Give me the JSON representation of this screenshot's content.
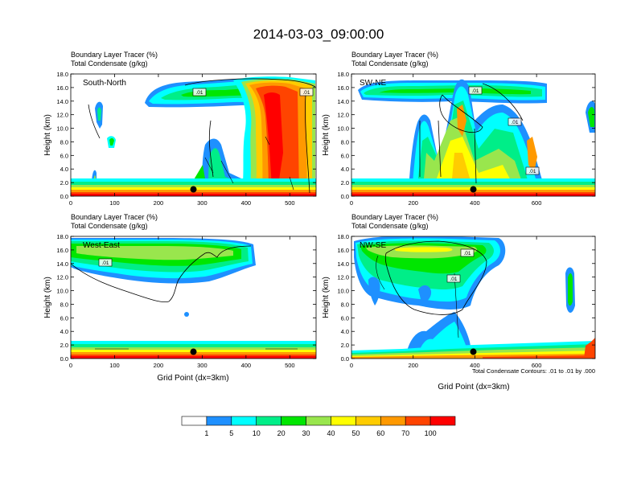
{
  "title": "2014-03-03_09:00:00",
  "chart_data": [
    {
      "type": "heatmap",
      "label": "South-North",
      "subtitle_line1": "Boundary Layer Tracer   (%)",
      "subtitle_line2": "Total Condensate   (g/kg)",
      "ylabel": "Height (km)",
      "xlabel": "",
      "xlim": [
        0,
        560
      ],
      "ylim": [
        0,
        18
      ],
      "xticks": [
        0,
        100,
        200,
        300,
        400,
        500
      ],
      "yticks": [
        "0.0",
        "2.0",
        "4.0",
        "6.0",
        "8.0",
        "10.0",
        "12.0",
        "14.0",
        "16.0",
        "18.0"
      ],
      "contour_labels": [
        ".01",
        ".01"
      ],
      "marker": {
        "x": 280,
        "y": 1.0
      }
    },
    {
      "type": "heatmap",
      "label": "SW-NE",
      "subtitle_line1": "Boundary Layer Tracer   (%)",
      "subtitle_line2": "Total Condensate   (g/kg)",
      "ylabel": "Height (km)",
      "xlabel": "",
      "xlim": [
        0,
        790
      ],
      "ylim": [
        0,
        18
      ],
      "xticks": [
        0,
        200,
        400,
        600
      ],
      "yticks": [
        "0.0",
        "2.0",
        "4.0",
        "6.0",
        "8.0",
        "10.0",
        "12.0",
        "14.0",
        "16.0",
        "18.0"
      ],
      "contour_labels": [
        ".01",
        ".01",
        ".01"
      ],
      "marker": {
        "x": 395,
        "y": 1.0
      }
    },
    {
      "type": "heatmap",
      "label": "West-East",
      "subtitle_line1": "Boundary Layer Tracer   (%)",
      "subtitle_line2": "Total Condensate   (g/kg)",
      "ylabel": "Height (km)",
      "xlabel": "Grid Point (dx=3km)",
      "xlim": [
        0,
        560
      ],
      "ylim": [
        0,
        18
      ],
      "xticks": [
        0,
        100,
        200,
        300,
        400,
        500
      ],
      "yticks": [
        "0.0",
        "2.0",
        "4.0",
        "6.0",
        "8.0",
        "10.0",
        "12.0",
        "14.0",
        "16.0",
        "18.0"
      ],
      "contour_labels": [
        ".01"
      ],
      "marker": {
        "x": 280,
        "y": 1.0
      }
    },
    {
      "type": "heatmap",
      "label": "NW-SE",
      "subtitle_line1": "Boundary Layer Tracer   (%)",
      "subtitle_line2": "Total Condensate   (g/kg)",
      "ylabel": "Height (km)",
      "xlabel": "Grid Point (dx=3km)",
      "xlim": [
        0,
        790
      ],
      "ylim": [
        0,
        18
      ],
      "xticks": [
        0,
        200,
        400,
        600
      ],
      "yticks": [
        "0.0",
        "2.0",
        "4.0",
        "6.0",
        "8.0",
        "10.0",
        "12.0",
        "14.0",
        "16.0",
        "18.0"
      ],
      "contour_labels": [
        ".01",
        ".01"
      ],
      "marker": {
        "x": 395,
        "y": 1.0
      },
      "footnote": "Total Condensate Contours: .01 to .01 by .000"
    }
  ],
  "colorbar": {
    "labels": [
      "1",
      "5",
      "10",
      "20",
      "30",
      "40",
      "50",
      "60",
      "70",
      "100"
    ],
    "colors": [
      "#ffffff",
      "#1e90ff",
      "#00ffff",
      "#00ee88",
      "#00e600",
      "#99e64d",
      "#ffff00",
      "#ffcc00",
      "#ff9900",
      "#ff4400",
      "#ff0000"
    ]
  }
}
